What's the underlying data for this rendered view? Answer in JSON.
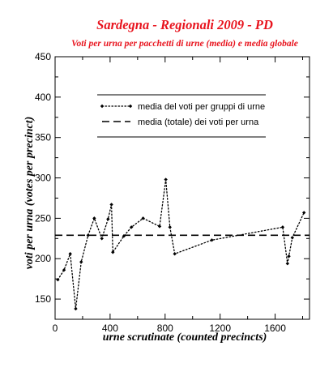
{
  "chart_data": {
    "type": "line",
    "title": "Sardegna - Regionali  2009 - PD",
    "subtitle": "Voti per urna per pacchetti di urne (media) e media globale",
    "xlabel": "urne scrutinate   (counted precincts)",
    "ylabel": "voti per urna    (votes per precinct)",
    "xlim": [
      0,
      1850
    ],
    "ylim": [
      125,
      450
    ],
    "xticks": [
      0,
      400,
      800,
      1200,
      1600
    ],
    "yticks": [
      150,
      200,
      250,
      300,
      350,
      400,
      450
    ],
    "grid": false,
    "legend_position": "upper-center",
    "colors": {
      "title": "#e8141e",
      "series": "#000000",
      "axes": "#000000"
    },
    "series": [
      {
        "name": "media del voti per gruppi di urne",
        "style": "dotted-diamond",
        "x": [
          20,
          65,
          110,
          150,
          190,
          240,
          285,
          340,
          385,
          410,
          420,
          500,
          555,
          640,
          760,
          805,
          835,
          870,
          1140,
          1655,
          1690,
          1700,
          1725,
          1810
        ],
        "y": [
          174,
          186,
          206,
          138,
          196,
          229,
          250,
          225,
          249,
          267,
          208,
          228,
          239,
          250,
          240,
          298,
          239,
          206,
          223,
          239,
          194,
          203,
          226,
          257
        ]
      },
      {
        "name": "media (totale) dei voti per urna",
        "style": "dashed",
        "x": [
          0,
          1850
        ],
        "y": [
          229,
          229
        ]
      }
    ]
  }
}
